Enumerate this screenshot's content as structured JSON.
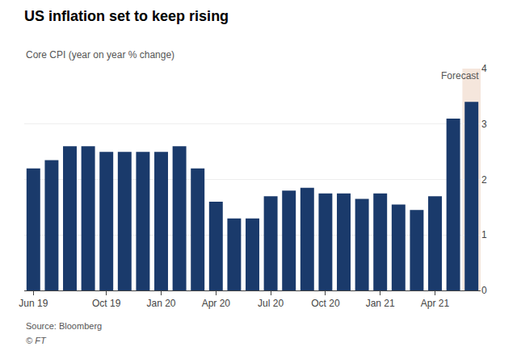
{
  "chart_data": {
    "type": "bar",
    "title": "US inflation set to keep rising",
    "subtitle": "Core CPI (year on year % change)",
    "categories": [
      "Jun 19",
      null,
      null,
      null,
      "Oct 19",
      null,
      null,
      "Jan 20",
      null,
      null,
      "Apr 20",
      null,
      null,
      "Jul 20",
      null,
      null,
      "Oct 20",
      null,
      null,
      "Jan 21",
      null,
      null,
      "Apr 21",
      null,
      null
    ],
    "values": [
      2.2,
      2.35,
      2.6,
      2.6,
      2.5,
      2.5,
      2.5,
      2.5,
      2.6,
      2.2,
      1.6,
      1.3,
      1.3,
      1.7,
      1.8,
      1.85,
      1.75,
      1.75,
      1.65,
      1.75,
      1.55,
      1.45,
      1.7,
      3.1,
      3.4
    ],
    "color": "#1a3a6b",
    "ylim": [
      0,
      4
    ],
    "yticks": [
      0,
      1,
      2,
      3,
      4
    ],
    "grid": true,
    "annotations": [
      {
        "text": "Forecast",
        "index": 24,
        "color": "#f5e6dc"
      }
    ],
    "source": [
      "Source: Bloomberg",
      "© FT"
    ]
  }
}
